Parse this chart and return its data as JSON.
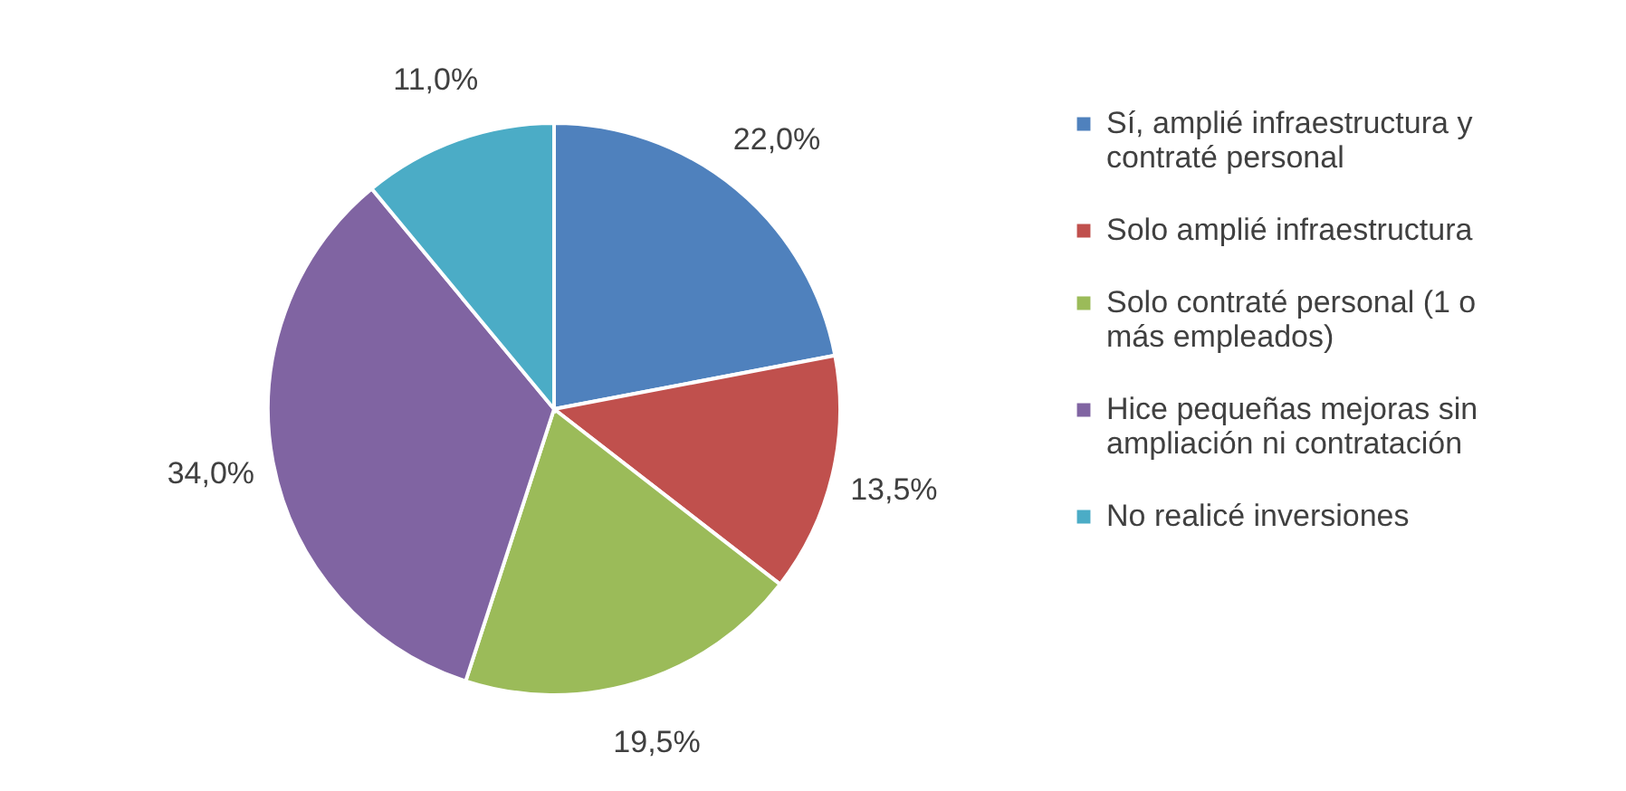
{
  "chart_data": {
    "type": "pie",
    "categories": [
      "Sí, amplié infraestructura y contraté personal",
      "Solo amplié infraestructura",
      "Solo contraté personal (1 o más empleados)",
      "Hice pequeñas mejoras sin ampliación ni contratación",
      "No realicé inversiones"
    ],
    "values": [
      22.0,
      13.5,
      19.5,
      34.0,
      11.0
    ],
    "colors": [
      "#4f81bd",
      "#c0504d",
      "#9bbb59",
      "#8064a2",
      "#4bacc6"
    ],
    "value_labels": [
      "22,0%",
      "13,5%",
      "19,5%",
      "34,0%",
      "11,0%"
    ],
    "legend": "right"
  }
}
